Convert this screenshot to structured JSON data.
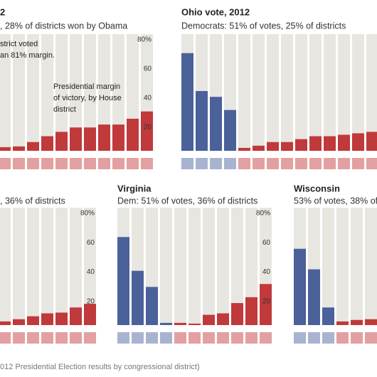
{
  "chart_data": [
    {
      "type": "bar",
      "title": "2",
      "subtitle": ", 28% of districts won by Obama",
      "annotations": [
        "strict voted",
        "an 81% margin.",
        "Presidential margin",
        "of victory, by House",
        "district"
      ],
      "values": [
        2.5,
        3,
        6,
        10,
        13,
        16,
        16,
        18,
        18,
        22,
        27
      ],
      "colors": [
        "#c0393b",
        "#c0393b",
        "#c0393b",
        "#c0393b",
        "#c0393b",
        "#c0393b",
        "#c0393b",
        "#c0393b",
        "#c0393b",
        "#c0393b",
        "#c0393b"
      ],
      "square_colors": [
        "#e2a0a2",
        "#e2a0a2",
        "#e2a0a2",
        "#e2a0a2",
        "#e2a0a2",
        "#e2a0a2",
        "#e2a0a2",
        "#e2a0a2",
        "#e2a0a2",
        "#e2a0a2",
        "#e2a0a2"
      ],
      "ylim": [
        0,
        80
      ],
      "yticks": [
        {
          "value": 80,
          "label": "80%"
        },
        60,
        40,
        20
      ]
    },
    {
      "type": "bar",
      "title": "Ohio vote, 2012",
      "subtitle": "Democrats: 51% of votes, 25% of districts",
      "values": [
        67,
        41,
        37,
        28,
        2,
        3.5,
        6,
        6,
        8,
        10,
        10,
        11,
        12,
        13
      ],
      "colors": [
        "#4a6199",
        "#4a6199",
        "#4a6199",
        "#4a6199",
        "#c0393b",
        "#c0393b",
        "#c0393b",
        "#c0393b",
        "#c0393b",
        "#c0393b",
        "#c0393b",
        "#c0393b",
        "#c0393b",
        "#c0393b"
      ],
      "square_colors": [
        "#a8b4cf",
        "#a8b4cf",
        "#a8b4cf",
        "#a8b4cf",
        "#e2a0a2",
        "#e2a0a2",
        "#e2a0a2",
        "#e2a0a2",
        "#e2a0a2",
        "#e2a0a2",
        "#e2a0a2",
        "#e2a0a2",
        "#e2a0a2",
        "#e2a0a2"
      ],
      "ylim": [
        0,
        80
      ]
    },
    {
      "type": "bar",
      "subtitle": ", 36% of districts",
      "values": [
        2.5,
        4,
        6,
        8,
        8.5,
        12,
        14.5
      ],
      "colors": [
        "#c0393b",
        "#c0393b",
        "#c0393b",
        "#c0393b",
        "#c0393b",
        "#c0393b",
        "#c0393b"
      ],
      "square_colors": [
        "#e2a0a2",
        "#e2a0a2",
        "#e2a0a2",
        "#e2a0a2",
        "#e2a0a2",
        "#e2a0a2",
        "#e2a0a2"
      ],
      "ylim": [
        0,
        80
      ],
      "yticks": [
        {
          "value": 80,
          "label": "80%"
        },
        60,
        40,
        20
      ]
    },
    {
      "type": "bar",
      "title": "Virginia",
      "subtitle": "Dem: 51% of votes, 36% of districts",
      "values": [
        60,
        37,
        26,
        1.5,
        1.5,
        1,
        7,
        8,
        15,
        19,
        28
      ],
      "colors": [
        "#4a6199",
        "#4a6199",
        "#4a6199",
        "#4a6199",
        "#c0393b",
        "#c0393b",
        "#c0393b",
        "#c0393b",
        "#c0393b",
        "#c0393b",
        "#c0393b"
      ],
      "square_colors": [
        "#a8b4cf",
        "#a8b4cf",
        "#a8b4cf",
        "#a8b4cf",
        "#e2a0a2",
        "#e2a0a2",
        "#e2a0a2",
        "#e2a0a2",
        "#e2a0a2",
        "#e2a0a2",
        "#e2a0a2"
      ],
      "ylim": [
        0,
        80
      ],
      "yticks": [
        {
          "value": 80,
          "label": "80%"
        },
        60,
        40,
        20
      ]
    },
    {
      "type": "bar",
      "title": "Wisconsin",
      "subtitle": "53% of votes, 38% of d",
      "values": [
        52,
        38,
        12,
        2.5,
        3.5,
        4
      ],
      "colors": [
        "#4a6199",
        "#4a6199",
        "#4a6199",
        "#c0393b",
        "#c0393b",
        "#c0393b"
      ],
      "square_colors": [
        "#a8b4cf",
        "#a8b4cf",
        "#a8b4cf",
        "#e2a0a2",
        "#e2a0a2",
        "#e2a0a2"
      ],
      "ylim": [
        0,
        80
      ]
    }
  ],
  "footer": "012 Presidential Election results by congressional district)"
}
